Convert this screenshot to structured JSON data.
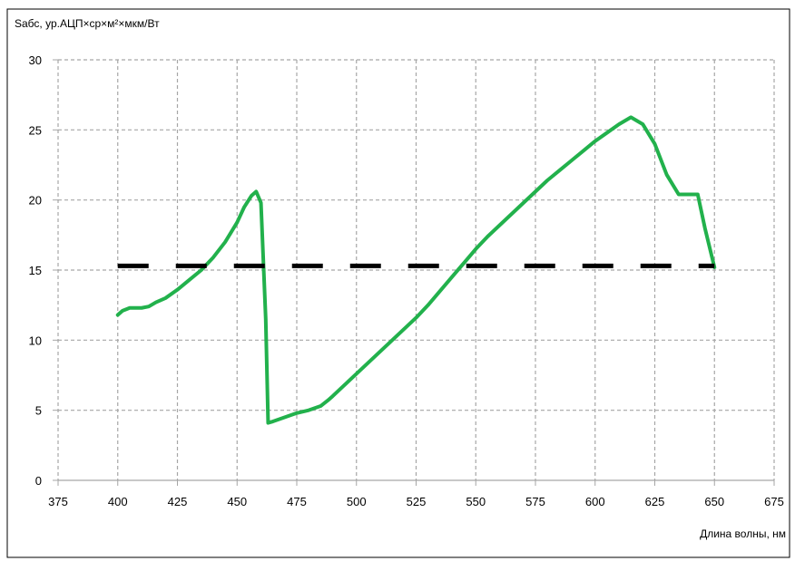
{
  "chart_data": {
    "type": "line",
    "title": "",
    "ylabel": "Sабс, ур.АЦП×ср×м²×мкм/Вт",
    "xlabel": "Длина волны, нм",
    "xlim": [
      375,
      675
    ],
    "ylim": [
      0,
      30
    ],
    "x_ticks": [
      375,
      400,
      425,
      450,
      475,
      500,
      525,
      550,
      575,
      600,
      625,
      650,
      675
    ],
    "y_ticks": [
      0,
      5,
      10,
      15,
      20,
      25,
      30
    ],
    "grid": true,
    "grid_style": "dashed",
    "colors": {
      "series": "#22b14c",
      "threshold": "#000000",
      "grid": "#a6a6a6"
    },
    "series": [
      {
        "x": [
          400,
          402,
          405,
          410,
          413,
          416,
          420,
          425,
          430,
          435,
          440,
          445,
          450,
          453,
          456,
          458,
          460,
          462,
          463,
          465,
          470,
          475,
          480,
          485,
          488,
          490,
          495,
          500,
          505,
          510,
          515,
          520,
          525,
          530,
          535,
          540,
          545,
          550,
          555,
          560,
          565,
          570,
          575,
          580,
          585,
          590,
          595,
          600,
          605,
          610,
          615,
          620,
          625,
          630,
          635,
          640,
          643,
          646,
          650
        ],
        "y": [
          11.8,
          12.1,
          12.3,
          12.3,
          12.4,
          12.7,
          13.0,
          13.6,
          14.3,
          15.0,
          15.9,
          17.0,
          18.4,
          19.5,
          20.3,
          20.6,
          19.8,
          11.5,
          4.1,
          4.2,
          4.5,
          4.8,
          5.0,
          5.3,
          5.7,
          6.0,
          6.8,
          7.6,
          8.4,
          9.2,
          10.0,
          10.8,
          11.6,
          12.5,
          13.5,
          14.5,
          15.5,
          16.5,
          17.4,
          18.2,
          19.0,
          19.8,
          20.6,
          21.4,
          22.1,
          22.8,
          23.5,
          24.2,
          24.8,
          25.4,
          25.9,
          25.4,
          24.0,
          21.8,
          20.4,
          20.4,
          20.4,
          18.0,
          15.2
        ]
      },
      {
        "x": [
          400,
          650
        ],
        "y": [
          15.3,
          15.3
        ]
      }
    ]
  }
}
